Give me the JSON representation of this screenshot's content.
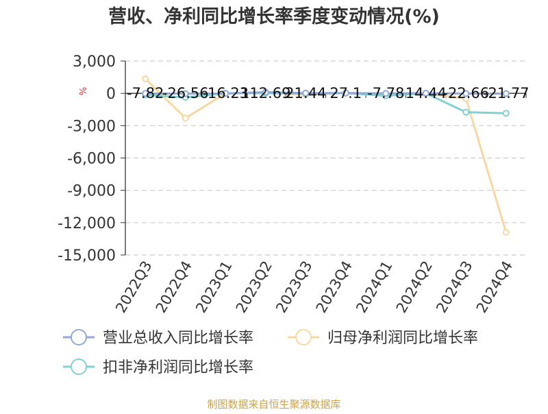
{
  "chart_data": {
    "type": "line",
    "title": "营收、净利同比增长率季度变动情况(%)",
    "ylabel": "%",
    "categories": [
      "2022Q3",
      "2022Q4",
      "2023Q1",
      "2023Q2",
      "2023Q3",
      "2023Q4",
      "2024Q1",
      "2024Q2",
      "2024Q3",
      "2024Q4"
    ],
    "ylim": [
      -15000,
      3000
    ],
    "yticks": [
      3000,
      0,
      -3000,
      -6000,
      -9000,
      -12000,
      -15000
    ],
    "ytick_labels": [
      "3,000",
      "0",
      "-3,000",
      "-6,000",
      "-9,000",
      "-12,000",
      "-15,000"
    ],
    "grid": true,
    "legend_position": "bottom-left",
    "series": [
      {
        "name": "营业总收入同比增长率",
        "color": "#8fa9d8",
        "values": [
          -7.82,
          -26.56,
          -16.23,
          112.69,
          21.44,
          27.1,
          -7.78,
          14.44,
          -22.66,
          -21.77
        ],
        "labels": [
          "-7.82",
          "-26.56",
          "-16.23",
          "112.69",
          "21.44",
          "27.1",
          "-7.78",
          "14.44",
          "-22.66",
          "-21.77"
        ]
      },
      {
        "name": "归母净利润同比增长率",
        "color": "#f8d8a0",
        "values": [
          1350,
          -2300,
          0,
          30,
          -120,
          40,
          -60,
          10,
          -500,
          -12900
        ]
      },
      {
        "name": "扣非净利润同比增长率",
        "color": "#7fd1d2",
        "values": [
          -150,
          -380,
          0,
          20,
          -40,
          20,
          -230,
          0,
          -1750,
          -1850
        ]
      }
    ]
  },
  "footer": {
    "source": "制图数据来自恒生聚源数据库"
  }
}
